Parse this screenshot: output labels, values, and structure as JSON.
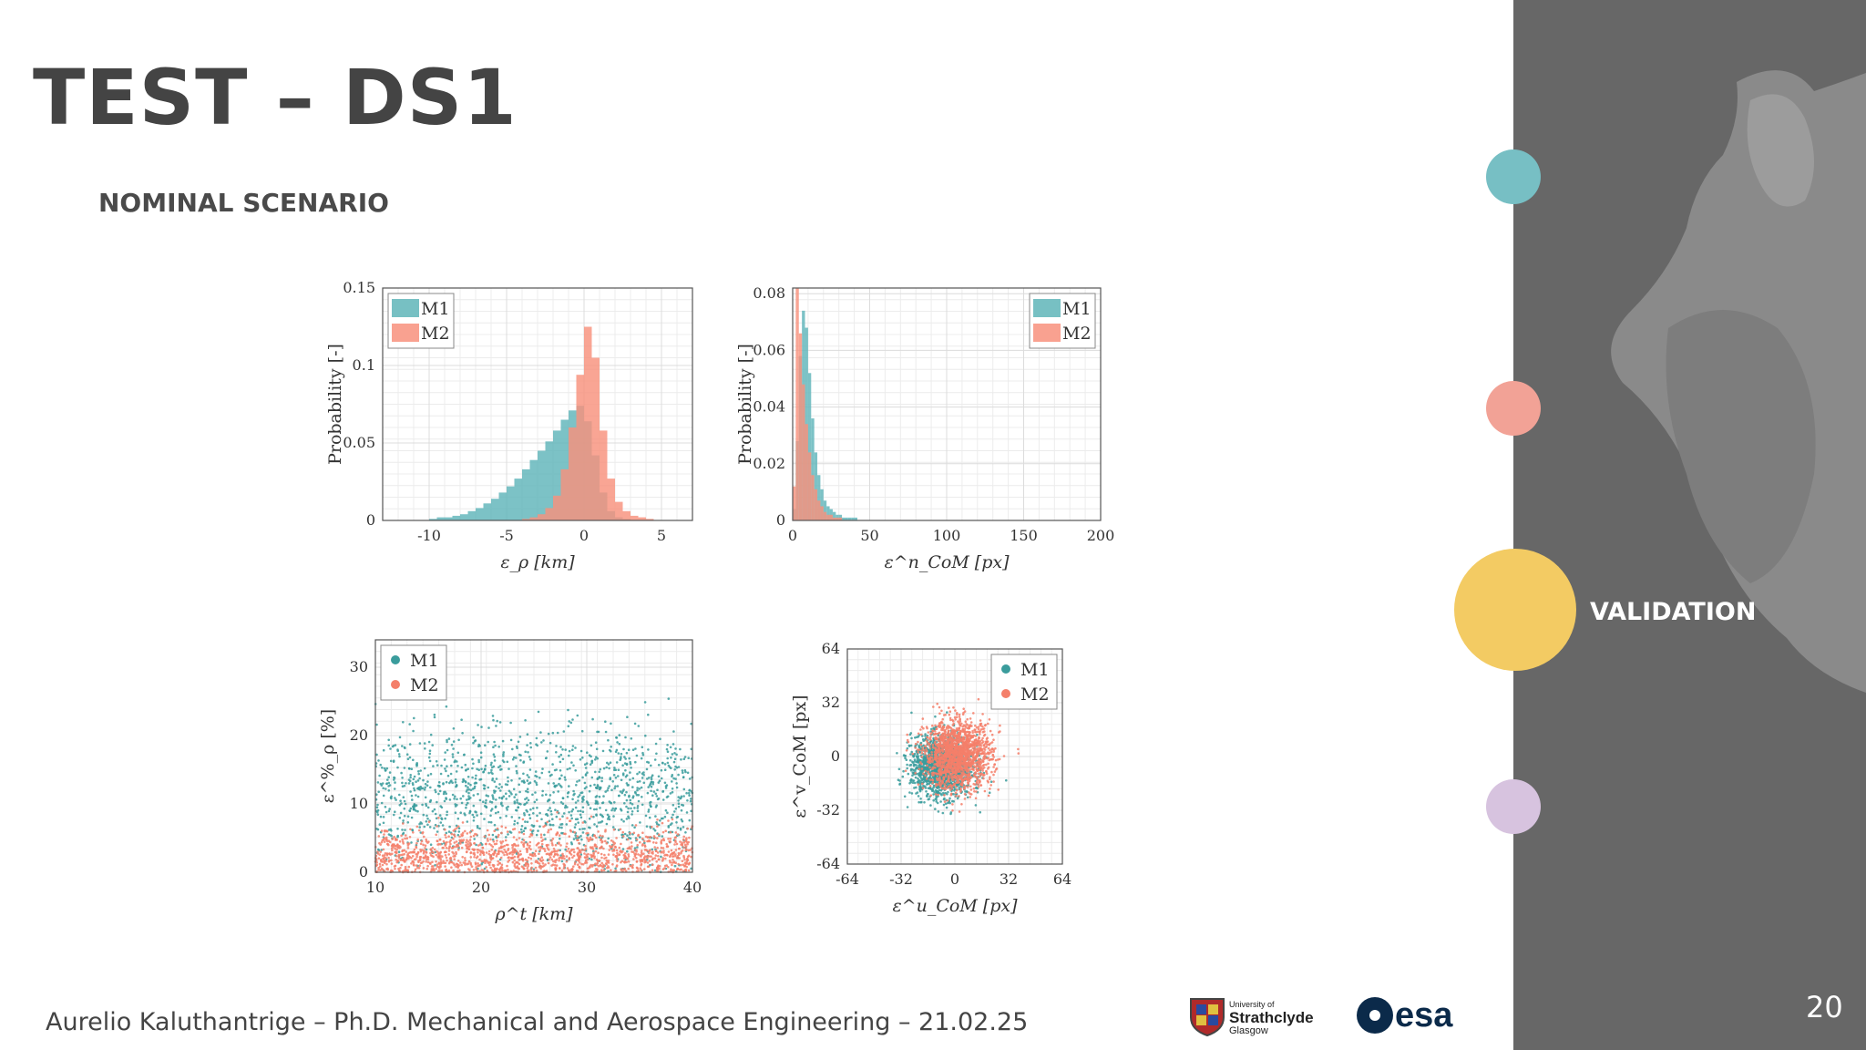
{
  "slide": {
    "title": "TEST – DS1",
    "subtitle": "NOMINAL SCENARIO",
    "footer": "Aurelio Kaluthantrige – Ph.D. Mechanical and Aerospace Engineering – 21.02.25",
    "page_number": "20"
  },
  "sidebar": {
    "nav": [
      {
        "label": "",
        "color": "#77bfc4",
        "active": false
      },
      {
        "label": "",
        "color": "#f2a296",
        "active": false
      },
      {
        "label": "VALIDATION",
        "color": "#f3cb63",
        "active": true
      },
      {
        "label": "",
        "color": "#d7c3df",
        "active": false
      }
    ]
  },
  "logos": {
    "university": {
      "line1": "University of",
      "line2": "Strathclyde",
      "line3": "Glasgow"
    },
    "esa": "esa"
  },
  "colors": {
    "M1": "#5fb5b9",
    "M2": "#f8917d",
    "M1_dot": "#3a9c9c",
    "M2_dot": "#f47f6a"
  },
  "chart_data": [
    {
      "type": "histogram",
      "id": "range-error",
      "xlabel": "ε_ρ [km]",
      "ylabel": "Probability [-]",
      "xlim": [
        -13,
        7
      ],
      "ylim": [
        0,
        0.15
      ],
      "xticks": [
        -10,
        -5,
        0,
        5
      ],
      "yticks": [
        0,
        0.05,
        0.1,
        0.15
      ],
      "xtick_labels": [
        "-10",
        "-5",
        "0",
        "5"
      ],
      "ytick_labels": [
        "0",
        "0.05",
        "0.1",
        "0.15"
      ],
      "legend": [
        "M1",
        "M2"
      ],
      "legend_position": "top-left",
      "bin_width": 0.5,
      "series": [
        {
          "name": "M1",
          "bin_start": -10,
          "values": [
            0.001,
            0.002,
            0.002,
            0.003,
            0.004,
            0.006,
            0.008,
            0.011,
            0.014,
            0.018,
            0.022,
            0.027,
            0.033,
            0.039,
            0.045,
            0.051,
            0.058,
            0.065,
            0.071,
            0.074,
            0.064,
            0.042,
            0.018,
            0.006,
            0.002,
            0.001
          ]
        },
        {
          "name": "M2",
          "bin_start": -4,
          "values": [
            0.001,
            0.002,
            0.004,
            0.008,
            0.016,
            0.033,
            0.06,
            0.094,
            0.125,
            0.105,
            0.058,
            0.027,
            0.012,
            0.006,
            0.003,
            0.002,
            0.001
          ]
        }
      ]
    },
    {
      "type": "histogram",
      "id": "com-norm-error",
      "xlabel": "ε^n_CoM [px]",
      "ylabel": "Probability [-]",
      "xlim": [
        0,
        200
      ],
      "ylim": [
        0,
        0.082
      ],
      "xticks": [
        0,
        50,
        100,
        150,
        200
      ],
      "yticks": [
        0,
        0.02,
        0.04,
        0.06,
        0.08
      ],
      "xtick_labels": [
        "0",
        "50",
        "100",
        "150",
        "200"
      ],
      "ytick_labels": [
        "0",
        "0.02",
        "0.04",
        "0.06",
        "0.08"
      ],
      "legend": [
        "M1",
        "M2"
      ],
      "legend_position": "top-right",
      "bin_width": 2,
      "series": [
        {
          "name": "M1",
          "bin_start": 0,
          "values": [
            0.004,
            0.028,
            0.058,
            0.074,
            0.068,
            0.052,
            0.036,
            0.024,
            0.016,
            0.011,
            0.007,
            0.005,
            0.004,
            0.003,
            0.002,
            0.002,
            0.001,
            0.001,
            0.001,
            0.001,
            0.001
          ]
        },
        {
          "name": "M2",
          "bin_start": 0,
          "values": [
            0.012,
            0.082,
            0.066,
            0.048,
            0.034,
            0.024,
            0.016,
            0.011,
            0.007,
            0.005,
            0.003,
            0.002,
            0.002,
            0.001,
            0.001,
            0.001
          ]
        }
      ]
    },
    {
      "type": "scatter",
      "id": "range-percent-error",
      "xlabel": "ρ^t [km]",
      "ylabel": "ε^%_ρ [%]",
      "xlim": [
        10,
        40
      ],
      "ylim": [
        0,
        34
      ],
      "xticks": [
        10,
        20,
        30,
        40
      ],
      "yticks": [
        0,
        10,
        20,
        30
      ],
      "xtick_labels": [
        "10",
        "20",
        "30",
        "40"
      ],
      "ytick_labels": [
        "0",
        "10",
        "20",
        "30"
      ],
      "legend": [
        "M1",
        "M2"
      ],
      "legend_position": "top-left",
      "series": [
        {
          "name": "M1",
          "y_mean": 11,
          "y_spread": 5
        },
        {
          "name": "M2",
          "y_mean": 2.5,
          "y_spread": 2
        }
      ]
    },
    {
      "type": "scatter",
      "id": "com-components",
      "xlabel": "ε^u_CoM [px]",
      "ylabel": "ε^v_CoM [px]",
      "xlim": [
        -64,
        64
      ],
      "ylim": [
        -64,
        64
      ],
      "xticks": [
        -64,
        -32,
        0,
        32,
        64
      ],
      "yticks": [
        -64,
        -32,
        0,
        32,
        64
      ],
      "xtick_labels": [
        "-64",
        "-32",
        "0",
        "32",
        "64"
      ],
      "ytick_labels": [
        "-64",
        "-32",
        "0",
        "32",
        "64"
      ],
      "legend": [
        "M1",
        "M2"
      ],
      "legend_position": "top-right",
      "series": [
        {
          "name": "M1",
          "center": [
            -8,
            -6
          ],
          "spread": 9
        },
        {
          "name": "M2",
          "center": [
            2,
            1
          ],
          "spread": 10
        }
      ]
    }
  ]
}
